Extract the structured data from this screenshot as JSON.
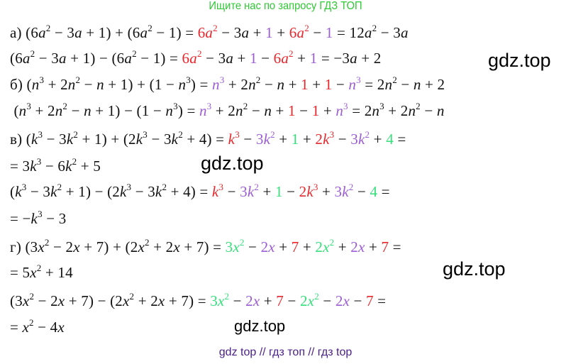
{
  "header": {
    "title": "Ищите нас по запросу ГДЗ ТОП"
  },
  "colors": {
    "red": "#e8262b",
    "purple": "#9b5cd6",
    "green": "#35e07a",
    "title_green": "#2fc934",
    "footer_purple": "#4a1f8a"
  },
  "lines": [
    [
      [
        "а) (6a^2 − 3a + 1) + (6a^2 − 1) = ",
        ""
      ],
      [
        "6a^2",
        "red"
      ],
      [
        " − 3a + ",
        ""
      ],
      [
        "1",
        "purple"
      ],
      [
        " + ",
        ""
      ],
      [
        "6a^2",
        "red"
      ],
      [
        " − ",
        ""
      ],
      [
        "1",
        "purple"
      ],
      [
        " = 12a^2 − 3a",
        ""
      ]
    ],
    [
      [
        "(6a^2 − 3a + 1) − (6a^2 − 1) = ",
        ""
      ],
      [
        "6a^2",
        "red"
      ],
      [
        " − 3a + ",
        ""
      ],
      [
        "1",
        "purple"
      ],
      [
        " − ",
        ""
      ],
      [
        "6a^2",
        "red"
      ],
      [
        " + ",
        ""
      ],
      [
        "1",
        "purple"
      ],
      [
        " = −3a + 2",
        ""
      ]
    ],
    [
      [
        "б) (n^3 + 2n^2 − n + 1) + (1 − n^3) = ",
        ""
      ],
      [
        "n^3",
        "purple"
      ],
      [
        " + 2n^2 − n + ",
        ""
      ],
      [
        "1",
        "red"
      ],
      [
        " + ",
        ""
      ],
      [
        "1",
        "red"
      ],
      [
        " − ",
        ""
      ],
      [
        "n^3",
        "purple"
      ],
      [
        " = 2n^2 − n + 2",
        ""
      ]
    ],
    [
      [
        " (n^3 + 2n^2 − n + 1) − (1 − n^3) = ",
        ""
      ],
      [
        "n^3",
        "purple"
      ],
      [
        " + 2n^2 − n + ",
        ""
      ],
      [
        "1",
        "red"
      ],
      [
        " − ",
        ""
      ],
      [
        "1",
        "red"
      ],
      [
        " + ",
        ""
      ],
      [
        "n^3",
        "purple"
      ],
      [
        " = 2n^3 + 2n^2 − n",
        ""
      ]
    ],
    [
      [
        "в) (k^3 − 3k^2 + 1) + (2k^3 − 3k^2 + 4) = ",
        ""
      ],
      [
        "k^3",
        "red"
      ],
      [
        " − ",
        ""
      ],
      [
        "3k^2",
        "purple"
      ],
      [
        " + ",
        ""
      ],
      [
        "1",
        "green"
      ],
      [
        " + ",
        ""
      ],
      [
        "2k^3",
        "red"
      ],
      [
        " − ",
        ""
      ],
      [
        "3k^2",
        "purple"
      ],
      [
        " + ",
        ""
      ],
      [
        "4",
        "green"
      ],
      [
        " =",
        ""
      ]
    ],
    [
      [
        "= 3k^3 − 6k^2 + 5",
        ""
      ]
    ],
    [
      [
        "(k^3 − 3k^2 + 1) − (2k^3 − 3k^2 + 4) = ",
        ""
      ],
      [
        "k^3",
        "red"
      ],
      [
        " − ",
        ""
      ],
      [
        "3k^2",
        "purple"
      ],
      [
        " + ",
        ""
      ],
      [
        "1",
        "green"
      ],
      [
        " − ",
        ""
      ],
      [
        "2k^3",
        "red"
      ],
      [
        " + ",
        ""
      ],
      [
        "3k^2",
        "purple"
      ],
      [
        " − ",
        ""
      ],
      [
        "4",
        "green"
      ],
      [
        " =",
        ""
      ]
    ],
    [
      [
        "= −k^3 − 3",
        ""
      ]
    ],
    [
      [
        "г) (3x^2 − 2x + 7) + (2x^2 + 2x + 7) = ",
        ""
      ],
      [
        "3x^2",
        "green"
      ],
      [
        " − ",
        ""
      ],
      [
        "2x",
        "purple"
      ],
      [
        " + ",
        ""
      ],
      [
        "7",
        "red"
      ],
      [
        " + ",
        ""
      ],
      [
        "2x^2",
        "green"
      ],
      [
        " + ",
        ""
      ],
      [
        "2x",
        "purple"
      ],
      [
        " + ",
        ""
      ],
      [
        "7",
        "red"
      ],
      [
        " =",
        ""
      ]
    ],
    [
      [
        "= 5x^2 + 14",
        ""
      ]
    ],
    [
      [
        "(3x^2 − 2x + 7) − (2x^2 + 2x + 7) = ",
        ""
      ],
      [
        "3x^2",
        "green"
      ],
      [
        " − ",
        ""
      ],
      [
        "2x",
        "purple"
      ],
      [
        " + ",
        ""
      ],
      [
        "7",
        "red"
      ],
      [
        " − ",
        ""
      ],
      [
        "2x^2",
        "green"
      ],
      [
        " − ",
        ""
      ],
      [
        "2x",
        "purple"
      ],
      [
        " − ",
        ""
      ],
      [
        "7",
        "red"
      ],
      [
        " =",
        ""
      ]
    ],
    [
      [
        "= x^2 − 4x",
        ""
      ]
    ]
  ],
  "watermarks": [
    "gdz.top",
    "gdz.top",
    "gdz.top",
    "gdz.top"
  ],
  "footer": {
    "text": "gdz top  //  гдз топ  //  гдз top"
  }
}
